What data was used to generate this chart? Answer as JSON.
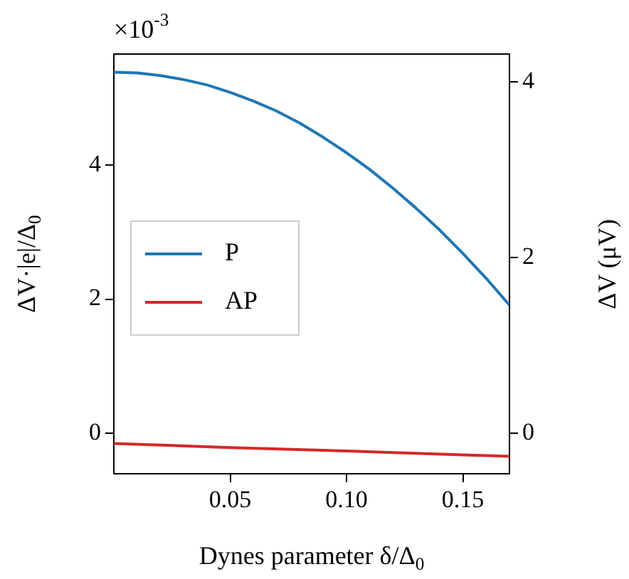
{
  "chart_data": {
    "type": "line",
    "xlabel": "Dynes parameter δ/Δ$_{0}$",
    "ylabel": "ΔV·|e|/Δ$_{0}$",
    "y2label": "ΔV (μV)",
    "annotations": [
      "×10$^{-3}$"
    ],
    "x": [
      0,
      0.01,
      0.02,
      0.03,
      0.04,
      0.05,
      0.06,
      0.07,
      0.08,
      0.09,
      0.1,
      0.11,
      0.12,
      0.13,
      0.14,
      0.15,
      0.16,
      0.17
    ],
    "series": [
      {
        "name": "P",
        "color": "#1f77b4",
        "values": [
          5.38,
          5.37,
          5.33,
          5.27,
          5.19,
          5.08,
          4.95,
          4.8,
          4.62,
          4.41,
          4.18,
          3.93,
          3.65,
          3.35,
          3.03,
          2.68,
          2.31,
          1.91
        ]
      },
      {
        "name": "AP",
        "color": "#d62728",
        "x": [
          0,
          0.05,
          0.1,
          0.15,
          0.17
        ],
        "values": [
          -0.15,
          -0.21,
          -0.26,
          -0.32,
          -0.34
        ]
      }
    ],
    "xlim": [
      0,
      0.17
    ],
    "xticks": [
      {
        "value": 0.05,
        "label": "0.05"
      },
      {
        "value": 0.1,
        "label": "0.10"
      },
      {
        "value": 0.15,
        "label": "0.15"
      }
    ],
    "ylim": [
      -0.6,
      5.65
    ],
    "yticks": [
      0,
      2,
      4
    ],
    "y2lim": [
      -0.46,
      4.32
    ],
    "y2ticks": [
      0,
      2,
      4
    ],
    "grid": false,
    "legend": "left",
    "marker": "none",
    "line_style": "solid"
  }
}
